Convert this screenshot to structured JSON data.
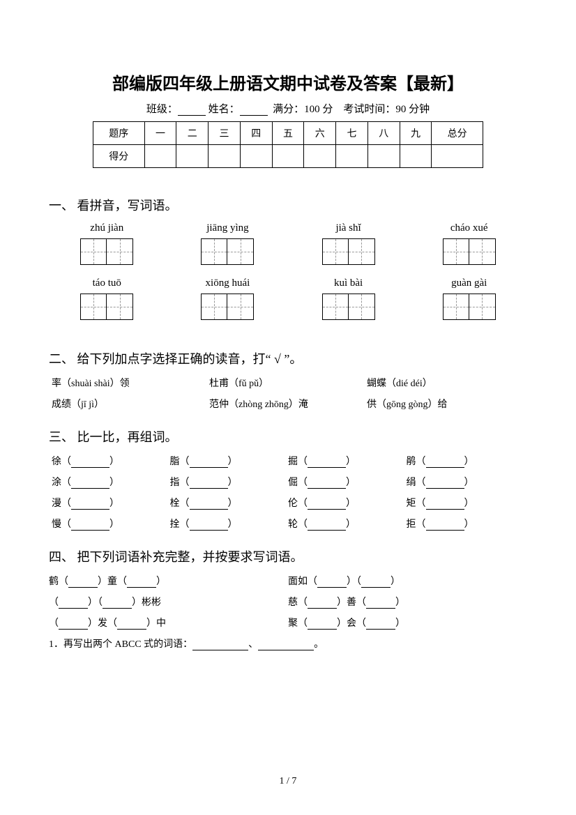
{
  "title": "部编版四年级上册语文期中试卷及答案【最新】",
  "info": {
    "class_label": "班级：",
    "name_label": "姓名：",
    "full_label": "满分：",
    "full_value": "100 分",
    "time_label": "考试时间：",
    "time_value": "90 分钟"
  },
  "score_table": {
    "headers": [
      "题序",
      "一",
      "二",
      "三",
      "四",
      "五",
      "六",
      "七",
      "八",
      "九",
      "总分"
    ],
    "row_label": "得分"
  },
  "section1": {
    "title": "一、 看拼音，写词语。",
    "items": [
      {
        "pinyin": "zhú jiàn"
      },
      {
        "pinyin": "jiāng yìng"
      },
      {
        "pinyin": "jià shǐ"
      },
      {
        "pinyin": "cháo xué"
      },
      {
        "pinyin": "táo tuō"
      },
      {
        "pinyin": "xiōng huái"
      },
      {
        "pinyin": "kuì bài"
      },
      {
        "pinyin": "guàn gài"
      }
    ]
  },
  "section2": {
    "title": "二、 给下列加点字选择正确的读音，打“ √ ”。",
    "row1": [
      "率（shuài shài）领",
      "杜甫（fǔ pǔ）",
      "蝴蝶（dié déi）"
    ],
    "row2": [
      "成绩（jī jì）",
      "范仲（zhòng zhōng）淹",
      "供（gōng gòng）给"
    ]
  },
  "section3": {
    "title": "三、 比一比，再组词。",
    "rows": [
      [
        "徐",
        "脂",
        "掘",
        "鹃"
      ],
      [
        "涂",
        "指",
        "倔",
        "绢"
      ],
      [
        "漫",
        "栓",
        "伦",
        "矩"
      ],
      [
        "慢",
        "拴",
        "轮",
        "拒"
      ]
    ]
  },
  "section4": {
    "title": "四、 把下列词语补充完整，并按要求写词语。",
    "rows": [
      {
        "left_pre": "鹤（",
        "left_mid": "）童（",
        "left_post": "）",
        "right_pre": "面如（",
        "right_mid": "）（",
        "right_post": "）"
      },
      {
        "left_pre": "（",
        "left_mid": "）（",
        "left_post": "）彬彬",
        "right_pre": "慈（",
        "right_mid": "）善（",
        "right_post": "）"
      },
      {
        "left_pre": "（",
        "left_mid": "）发（",
        "left_post": "）中",
        "right_pre": "聚（",
        "right_mid": "）会（",
        "right_post": "）"
      }
    ],
    "last": "1．再写出两个 ABCC 式的词语："
  },
  "page_number": "1 / 7"
}
